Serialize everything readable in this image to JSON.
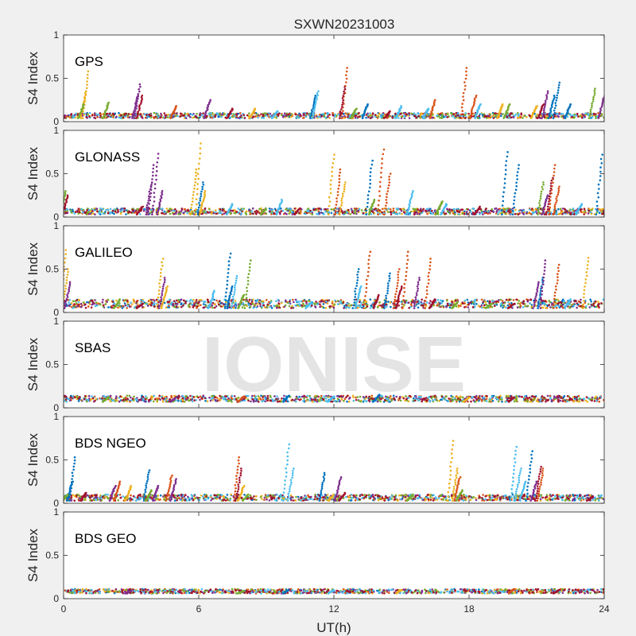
{
  "figure": {
    "title": "SXWN20231003",
    "xlabel": "UT(h)",
    "watermark": "IONISE"
  },
  "colors": {
    "figure_bg": "#f0f0f0",
    "axes_bg": "#ffffff",
    "axis": "#262626",
    "text": "#262626",
    "series": [
      "#0072BD",
      "#D95319",
      "#EDB120",
      "#7E2F8E",
      "#77AC30",
      "#4DBEEE",
      "#A2142F"
    ]
  },
  "chart_data": [
    {
      "type": "scatter",
      "panel_label": "GPS",
      "ylabel": "S4 Index",
      "xlim": [
        0,
        24
      ],
      "ylim": [
        0,
        1
      ],
      "xticks": [
        0,
        6,
        12,
        18,
        24
      ],
      "yticks": [
        0,
        0.5,
        1
      ],
      "xticklabels_visible": false,
      "baseline_min": 0.04,
      "baseline_max": 0.1,
      "series": [
        {
          "values": [
            [
              22.0,
              0.45
            ],
            [
              21.8,
              0.3
            ],
            [
              11.2,
              0.3
            ],
            [
              22.5,
              0.2
            ],
            [
              13.5,
              0.2
            ]
          ]
        },
        {
          "values": [
            [
              12.6,
              0.62
            ],
            [
              17.9,
              0.62
            ],
            [
              18.3,
              0.3
            ],
            [
              5.0,
              0.18
            ],
            [
              16.5,
              0.25
            ]
          ]
        },
        {
          "values": [
            [
              1.1,
              0.58
            ],
            [
              1.0,
              0.35
            ],
            [
              19.5,
              0.2
            ],
            [
              8.5,
              0.15
            ],
            [
              21.0,
              0.18
            ]
          ]
        },
        {
          "values": [
            [
              3.4,
              0.43
            ],
            [
              3.3,
              0.3
            ],
            [
              6.5,
              0.25
            ],
            [
              21.5,
              0.35
            ],
            [
              24.0,
              0.3
            ]
          ]
        },
        {
          "values": [
            [
              23.6,
              0.38
            ],
            [
              0.9,
              0.2
            ],
            [
              2.0,
              0.22
            ],
            [
              13.0,
              0.15
            ],
            [
              19.8,
              0.2
            ]
          ]
        },
        {
          "values": [
            [
              11.3,
              0.35
            ],
            [
              18.5,
              0.2
            ],
            [
              15.0,
              0.18
            ],
            [
              9.5,
              0.12
            ],
            [
              16.2,
              0.15
            ]
          ]
        },
        {
          "values": [
            [
              3.5,
              0.3
            ],
            [
              12.5,
              0.4
            ],
            [
              21.3,
              0.2
            ],
            [
              14.5,
              0.12
            ],
            [
              7.5,
              0.15
            ]
          ]
        }
      ]
    },
    {
      "type": "scatter",
      "panel_label": "GLONASS",
      "ylabel": "S4 Index",
      "xlim": [
        0,
        24
      ],
      "ylim": [
        0,
        1
      ],
      "xticks": [
        0,
        6,
        12,
        18,
        24
      ],
      "yticks": [
        0,
        0.5,
        1
      ],
      "xticklabels_visible": false,
      "baseline_min": 0.03,
      "baseline_max": 0.1,
      "series": [
        {
          "values": [
            [
              19.7,
              0.75
            ],
            [
              13.7,
              0.65
            ],
            [
              23.9,
              0.72
            ],
            [
              20.2,
              0.6
            ],
            [
              6.2,
              0.4
            ]
          ]
        },
        {
          "values": [
            [
              14.2,
              0.78
            ],
            [
              21.8,
              0.6
            ],
            [
              12.3,
              0.55
            ],
            [
              14.5,
              0.5
            ],
            [
              22.0,
              0.35
            ]
          ]
        },
        {
          "values": [
            [
              6.1,
              0.85
            ],
            [
              12.0,
              0.72
            ],
            [
              5.9,
              0.55
            ],
            [
              12.5,
              0.4
            ],
            [
              6.3,
              0.3
            ]
          ]
        },
        {
          "values": [
            [
              4.2,
              0.73
            ],
            [
              4.0,
              0.6
            ],
            [
              3.9,
              0.4
            ],
            [
              4.4,
              0.3
            ],
            [
              21.5,
              0.25
            ]
          ]
        },
        {
          "values": [
            [
              21.3,
              0.4
            ],
            [
              9.0,
              0.1
            ],
            [
              16.8,
              0.18
            ],
            [
              13.8,
              0.2
            ],
            [
              0.1,
              0.3
            ]
          ]
        },
        {
          "values": [
            [
              9.7,
              0.2
            ],
            [
              15.5,
              0.3
            ],
            [
              7.5,
              0.15
            ],
            [
              17.0,
              0.15
            ],
            [
              23.0,
              0.15
            ]
          ]
        },
        {
          "values": [
            [
              21.7,
              0.45
            ],
            [
              0.2,
              0.25
            ],
            [
              3.5,
              0.12
            ],
            [
              18.5,
              0.12
            ],
            [
              10.5,
              0.1
            ]
          ]
        }
      ]
    },
    {
      "type": "scatter",
      "panel_label": "GALILEO",
      "ylabel": "S4 Index",
      "xlim": [
        0,
        24
      ],
      "ylim": [
        0,
        1
      ],
      "xticks": [
        0,
        6,
        12,
        18,
        24
      ],
      "yticks": [
        0,
        0.5,
        1
      ],
      "xticklabels_visible": false,
      "baseline_min": 0.05,
      "baseline_max": 0.15,
      "series": [
        {
          "values": [
            [
              7.4,
              0.68
            ],
            [
              13.1,
              0.5
            ],
            [
              14.5,
              0.45
            ],
            [
              21.3,
              0.4
            ],
            [
              7.5,
              0.3
            ]
          ]
        },
        {
          "values": [
            [
              13.6,
              0.7
            ],
            [
              15.3,
              0.7
            ],
            [
              16.3,
              0.62
            ],
            [
              14.9,
              0.5
            ],
            [
              22.0,
              0.55
            ]
          ]
        },
        {
          "values": [
            [
              0.1,
              0.72
            ],
            [
              4.4,
              0.62
            ],
            [
              23.3,
              0.63
            ],
            [
              4.6,
              0.3
            ],
            [
              0.2,
              0.5
            ]
          ]
        },
        {
          "values": [
            [
              21.4,
              0.6
            ],
            [
              15.8,
              0.4
            ],
            [
              0.3,
              0.35
            ],
            [
              21.1,
              0.35
            ],
            [
              4.5,
              0.4
            ]
          ]
        },
        {
          "values": [
            [
              8.3,
              0.6
            ],
            [
              8.0,
              0.2
            ],
            [
              2.5,
              0.15
            ],
            [
              17.5,
              0.12
            ],
            [
              19.0,
              0.1
            ]
          ]
        },
        {
          "values": [
            [
              7.7,
              0.42
            ],
            [
              6.7,
              0.25
            ],
            [
              13.2,
              0.3
            ],
            [
              22.5,
              0.15
            ],
            [
              11.0,
              0.12
            ]
          ]
        },
        {
          "values": [
            [
              14.0,
              0.2
            ],
            [
              15.0,
              0.3
            ],
            [
              3.5,
              0.1
            ],
            [
              16.5,
              0.15
            ],
            [
              20.0,
              0.1
            ]
          ]
        }
      ]
    },
    {
      "type": "scatter",
      "panel_label": "SBAS",
      "ylabel": "S4 Index",
      "xlim": [
        0,
        24
      ],
      "ylim": [
        0,
        1
      ],
      "xticks": [
        0,
        6,
        12,
        18,
        24
      ],
      "yticks": [
        0,
        0.5,
        1
      ],
      "xticklabels_visible": false,
      "baseline_min": 0.07,
      "baseline_max": 0.14,
      "series": [
        {
          "values": [
            [
              10.0,
              0.14
            ],
            [
              14.0,
              0.15
            ]
          ]
        },
        {
          "values": [
            [
              8.0,
              0.13
            ]
          ]
        },
        {
          "values": [
            [
              18.0,
              0.12
            ]
          ]
        },
        {
          "values": [
            [
              5.0,
              0.12
            ]
          ]
        },
        {
          "values": [
            [
              2.0,
              0.12
            ]
          ]
        },
        {
          "values": [
            [
              12.0,
              0.13
            ]
          ]
        },
        {
          "values": [
            [
              20.0,
              0.12
            ]
          ]
        }
      ]
    },
    {
      "type": "scatter",
      "panel_label": "BDS NGEO",
      "ylabel": "S4 Index",
      "xlim": [
        0,
        24
      ],
      "ylim": [
        0,
        1
      ],
      "xticks": [
        0,
        6,
        12,
        18,
        24
      ],
      "yticks": [
        0,
        0.5,
        1
      ],
      "xticklabels_visible": false,
      "baseline_min": 0.03,
      "baseline_max": 0.1,
      "series": [
        {
          "values": [
            [
              0.5,
              0.53
            ],
            [
              3.8,
              0.38
            ],
            [
              11.6,
              0.35
            ],
            [
              20.8,
              0.6
            ],
            [
              0.4,
              0.25
            ]
          ]
        },
        {
          "values": [
            [
              7.8,
              0.53
            ],
            [
              4.8,
              0.32
            ],
            [
              2.5,
              0.25
            ],
            [
              21.3,
              0.4
            ],
            [
              17.6,
              0.3
            ]
          ]
        },
        {
          "values": [
            [
              17.3,
              0.72
            ],
            [
              3.0,
              0.2
            ],
            [
              17.5,
              0.4
            ],
            [
              8.0,
              0.2
            ],
            [
              12.0,
              0.1
            ]
          ]
        },
        {
          "values": [
            [
              12.3,
              0.3
            ],
            [
              5.0,
              0.28
            ],
            [
              2.3,
              0.2
            ],
            [
              21.0,
              0.25
            ],
            [
              4.2,
              0.2
            ]
          ]
        },
        {
          "values": [
            [
              3.9,
              0.15
            ],
            [
              8.2,
              0.1
            ],
            [
              17.7,
              0.15
            ],
            [
              0.2,
              0.1
            ],
            [
              15.5,
              0.1
            ]
          ]
        },
        {
          "values": [
            [
              10.0,
              0.68
            ],
            [
              20.1,
              0.65
            ],
            [
              10.2,
              0.4
            ],
            [
              20.3,
              0.4
            ],
            [
              20.5,
              0.25
            ]
          ]
        },
        {
          "values": [
            [
              21.2,
              0.42
            ],
            [
              7.9,
              0.4
            ],
            [
              1.0,
              0.12
            ],
            [
              12.5,
              0.12
            ],
            [
              23.5,
              0.08
            ]
          ]
        }
      ]
    },
    {
      "type": "scatter",
      "panel_label": "BDS GEO",
      "ylabel": "S4 Index",
      "xlim": [
        0,
        24
      ],
      "ylim": [
        0,
        1
      ],
      "xticks": [
        0,
        6,
        12,
        18,
        24
      ],
      "yticks": [
        0,
        0.5,
        1
      ],
      "xticklabels_visible": true,
      "baseline_min": 0.06,
      "baseline_max": 0.11,
      "series": [
        {
          "values": [
            [
              10.0,
              0.1
            ]
          ]
        },
        {
          "values": [
            [
              20.0,
              0.11
            ]
          ]
        },
        {
          "values": [
            [
              15.0,
              0.1
            ]
          ]
        },
        {
          "values": [
            [
              3.0,
              0.09
            ]
          ]
        },
        {
          "values": [
            [
              8.0,
              0.09
            ]
          ]
        },
        {
          "values": [
            [
              12.0,
              0.1
            ]
          ]
        },
        {
          "values": [
            [
              22.0,
              0.1
            ]
          ]
        }
      ]
    }
  ]
}
